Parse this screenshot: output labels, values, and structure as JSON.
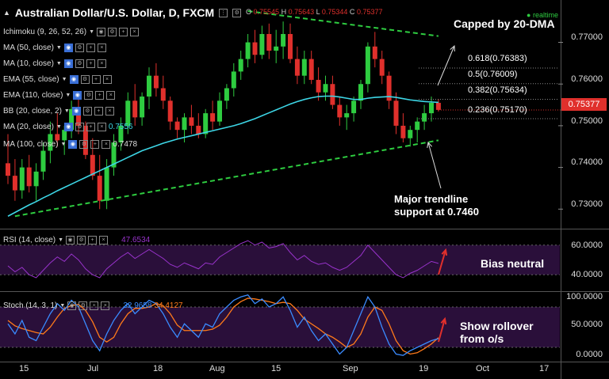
{
  "header": {
    "symbol_title": "Australian Dollar/U.S. Dollar, D, FXCM",
    "o_label": "O",
    "o_value": "0.75545",
    "h_label": "H",
    "h_value": "0.75643",
    "l_label": "L",
    "l_value": "0.75344",
    "c_label": "C",
    "c_value": "0.75377",
    "realtime": "realtime"
  },
  "indicators": [
    {
      "label": "Ichimoku (9, 26, 52, 26)",
      "value": ""
    },
    {
      "label": "MA (50, close)",
      "value": ""
    },
    {
      "label": "MA (10, close)",
      "value": ""
    },
    {
      "label": "EMA (55, close)",
      "value": ""
    },
    {
      "label": "EMA (110, close)",
      "value": ""
    },
    {
      "label": "BB (20, close, 2)",
      "value": ""
    },
    {
      "label": "MA (20, close)",
      "value": "0.7556"
    },
    {
      "label": "MA (100, close)",
      "value": "0.7478"
    }
  ],
  "price_axis": {
    "ticks": [
      "0.77000",
      "0.76000",
      "0.75000",
      "0.74000",
      "0.73000"
    ],
    "current_price": "0.75377"
  },
  "x_axis": {
    "ticks": [
      "15",
      "Jul",
      "18",
      "Aug",
      "15",
      "Sep",
      "19",
      "Oct",
      "17"
    ]
  },
  "fib_levels": [
    {
      "label": "0.618(0.76383)"
    },
    {
      "label": "0.5(0.76009)"
    },
    {
      "label": "0.382(0.75634)"
    },
    {
      "label": "0.236(0.75170)"
    }
  ],
  "annotations": {
    "capped": "Capped by 20-DMA",
    "support_line1": "Major trendline",
    "support_line2": "support at 0.7460",
    "bias": "Bias neutral",
    "stoch_line1": "Show rollover",
    "stoch_line2": "from o/s"
  },
  "rsi_panel": {
    "label": "RSI (14, close)",
    "value": "47.6534",
    "ticks": [
      "60.0000",
      "40.0000"
    ]
  },
  "stoch_panel": {
    "label": "Stoch (14, 3, 1)",
    "k_value": "32.9658",
    "d_value": "34.4127",
    "ticks": [
      "100.0000",
      "50.0000",
      "0.0000"
    ]
  },
  "colors": {
    "background": "#000000",
    "bull": "#2ecc40",
    "bear": "#e0302c",
    "ma20": "#3dd6e6",
    "trendline": "#2ecc40",
    "rsi": "#9933cc",
    "stoch_k": "#3a8bff",
    "stoch_d": "#ff7a1a",
    "osc_fill": "#2a0f3a",
    "price_badge": "#e0302c"
  },
  "chart_data": [
    {
      "type": "candlestick",
      "title": "Australian Dollar/U.S. Dollar, D, FXCM",
      "ylim": [
        0.7255,
        0.7775
      ],
      "series": [
        {
          "name": "AUD/USD",
          "ohlc": [
            [
              0.741,
              0.748,
              0.736,
              0.738
            ],
            [
              0.738,
              0.742,
              0.732,
              0.7345
            ],
            [
              0.7345,
              0.742,
              0.7325,
              0.74
            ],
            [
              0.74,
              0.743,
              0.734,
              0.7355
            ],
            [
              0.7355,
              0.741,
              0.732,
              0.739
            ],
            [
              0.739,
              0.746,
              0.737,
              0.744
            ],
            [
              0.744,
              0.751,
              0.741,
              0.748
            ],
            [
              0.748,
              0.753,
              0.745,
              0.7465
            ],
            [
              0.7465,
              0.75,
              0.743,
              0.749
            ],
            [
              0.749,
              0.756,
              0.747,
              0.754
            ],
            [
              0.754,
              0.757,
              0.748,
              0.75
            ],
            [
              0.75,
              0.751,
              0.742,
              0.743
            ],
            [
              0.743,
              0.747,
              0.737,
              0.738
            ],
            [
              0.738,
              0.743,
              0.73,
              0.732
            ],
            [
              0.732,
              0.742,
              0.73,
              0.74
            ],
            [
              0.74,
              0.748,
              0.738,
              0.746
            ],
            [
              0.746,
              0.752,
              0.744,
              0.75
            ],
            [
              0.75,
              0.758,
              0.748,
              0.756
            ],
            [
              0.756,
              0.76,
              0.75,
              0.752
            ],
            [
              0.752,
              0.758,
              0.75,
              0.757
            ],
            [
              0.757,
              0.764,
              0.754,
              0.762
            ],
            [
              0.762,
              0.765,
              0.757,
              0.759
            ],
            [
              0.759,
              0.762,
              0.754,
              0.756
            ],
            [
              0.756,
              0.757,
              0.749,
              0.751
            ],
            [
              0.751,
              0.752,
              0.747,
              0.749
            ],
            [
              0.749,
              0.753,
              0.746,
              0.752
            ],
            [
              0.752,
              0.755,
              0.748,
              0.75
            ],
            [
              0.75,
              0.753,
              0.747,
              0.748
            ],
            [
              0.748,
              0.754,
              0.747,
              0.753
            ],
            [
              0.753,
              0.756,
              0.749,
              0.751
            ],
            [
              0.751,
              0.758,
              0.75,
              0.756
            ],
            [
              0.756,
              0.76,
              0.754,
              0.759
            ],
            [
              0.759,
              0.765,
              0.757,
              0.763
            ],
            [
              0.763,
              0.768,
              0.761,
              0.766
            ],
            [
              0.766,
              0.772,
              0.764,
              0.77
            ],
            [
              0.77,
              0.773,
              0.765,
              0.767
            ],
            [
              0.767,
              0.774,
              0.766,
              0.772
            ],
            [
              0.772,
              0.7745,
              0.766,
              0.768
            ],
            [
              0.768,
              0.773,
              0.765,
              0.769
            ],
            [
              0.769,
              0.775,
              0.766,
              0.772
            ],
            [
              0.772,
              0.7745,
              0.765,
              0.766
            ],
            [
              0.766,
              0.769,
              0.76,
              0.762
            ],
            [
              0.762,
              0.768,
              0.76,
              0.766
            ],
            [
              0.766,
              0.768,
              0.76,
              0.761
            ],
            [
              0.761,
              0.764,
              0.756,
              0.758
            ],
            [
              0.758,
              0.762,
              0.756,
              0.76
            ],
            [
              0.76,
              0.762,
              0.754,
              0.755
            ],
            [
              0.755,
              0.757,
              0.75,
              0.752
            ],
            [
              0.752,
              0.755,
              0.749,
              0.753
            ],
            [
              0.753,
              0.757,
              0.751,
              0.756
            ],
            [
              0.756,
              0.761,
              0.754,
              0.76
            ],
            [
              0.76,
              0.77,
              0.758,
              0.769
            ],
            [
              0.769,
              0.7725,
              0.764,
              0.766
            ],
            [
              0.766,
              0.768,
              0.76,
              0.762
            ],
            [
              0.762,
              0.763,
              0.754,
              0.756
            ],
            [
              0.756,
              0.758,
              0.748,
              0.75
            ],
            [
              0.75,
              0.753,
              0.746,
              0.747
            ],
            [
              0.747,
              0.75,
              0.745,
              0.749
            ],
            [
              0.749,
              0.752,
              0.746,
              0.751
            ],
            [
              0.751,
              0.755,
              0.749,
              0.753
            ],
            [
              0.753,
              0.757,
              0.751,
              0.7555
            ],
            [
              0.7555,
              0.7564,
              0.7534,
              0.7538
            ]
          ]
        },
        {
          "name": "MA (20, close)",
          "values": [
            0.7283,
            0.7292,
            0.7301,
            0.731,
            0.7318,
            0.7327,
            0.7335,
            0.7344,
            0.7352,
            0.736,
            0.7368,
            0.7376,
            0.7384,
            0.7392,
            0.74,
            0.7408,
            0.7416,
            0.7424,
            0.7432,
            0.744,
            0.7446,
            0.7452,
            0.7458,
            0.7463,
            0.7468,
            0.7472,
            0.7476,
            0.748,
            0.7484,
            0.7488,
            0.7492,
            0.7496,
            0.75,
            0.7505,
            0.7511,
            0.7517,
            0.7524,
            0.7531,
            0.7538,
            0.7545,
            0.7552,
            0.7558,
            0.7563,
            0.7567,
            0.757,
            0.7571,
            0.7571,
            0.7569,
            0.7566,
            0.7563,
            0.7563,
            0.7566,
            0.7568,
            0.7569,
            0.757,
            0.7568,
            0.7565,
            0.7562,
            0.756,
            0.7558,
            0.7557,
            0.7556
          ]
        }
      ]
    },
    {
      "type": "line",
      "title": "RSI (14, close)",
      "ylim": [
        30,
        70
      ],
      "series": [
        {
          "name": "RSI (14, close)",
          "values": [
            46,
            42,
            45,
            40,
            38,
            43,
            48,
            52,
            49,
            54,
            50,
            44,
            40,
            38,
            44,
            48,
            52,
            55,
            51,
            54,
            57,
            54,
            51,
            47,
            45,
            48,
            46,
            44,
            48,
            47,
            52,
            55,
            58,
            61,
            63,
            60,
            62,
            58,
            59,
            61,
            55,
            50,
            53,
            49,
            47,
            48,
            45,
            43,
            45,
            49,
            53,
            60,
            55,
            50,
            45,
            40,
            38,
            41,
            43,
            46,
            49,
            47.6534
          ]
        }
      ]
    },
    {
      "type": "line",
      "title": "Stoch (14, 3, 1)",
      "ylim": [
        0,
        100
      ],
      "series": [
        {
          "name": "%K",
          "values": [
            55,
            40,
            60,
            35,
            30,
            50,
            70,
            85,
            75,
            90,
            80,
            55,
            30,
            15,
            40,
            60,
            75,
            85,
            70,
            80,
            90,
            85,
            70,
            50,
            35,
            55,
            45,
            35,
            55,
            50,
            70,
            80,
            90,
            95,
            98,
            85,
            92,
            80,
            85,
            95,
            75,
            50,
            65,
            45,
            30,
            40,
            25,
            10,
            20,
            45,
            70,
            95,
            80,
            50,
            25,
            10,
            8,
            15,
            20,
            25,
            30,
            32.9658
          ]
        },
        {
          "name": "%D",
          "values": [
            60,
            52,
            48,
            45,
            42,
            40,
            50,
            65,
            78,
            82,
            84,
            75,
            58,
            35,
            28,
            35,
            55,
            70,
            78,
            78,
            80,
            85,
            82,
            70,
            53,
            45,
            45,
            45,
            45,
            47,
            53,
            65,
            80,
            88,
            93,
            92,
            90,
            88,
            85,
            87,
            85,
            75,
            62,
            55,
            48,
            40,
            35,
            28,
            20,
            25,
            40,
            65,
            80,
            75,
            55,
            30,
            15,
            10,
            12,
            18,
            25,
            34.4127
          ]
        }
      ]
    }
  ]
}
